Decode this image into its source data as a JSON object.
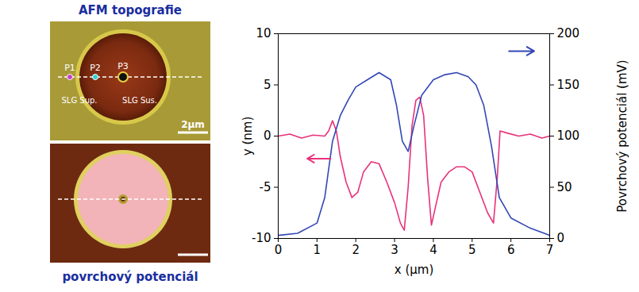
{
  "chart_data": {
    "type": "line",
    "x_label": "x (μm)",
    "y_label": "y (nm)",
    "y2_label": "Povrchový potenciál (mV)",
    "xlim": [
      0,
      7
    ],
    "xticks": [
      0,
      1,
      2,
      3,
      4,
      5,
      6,
      7
    ],
    "ylim": [
      -10,
      10
    ],
    "yticks": [
      -10,
      -5,
      0,
      5,
      10
    ],
    "y2lim": [
      0,
      200
    ],
    "y2ticks": [
      0,
      50,
      100,
      150,
      200
    ],
    "series": [
      {
        "color": "#e8327a",
        "axis": "y",
        "x": [
          0,
          0.3,
          0.6,
          0.9,
          1.2,
          1.3,
          1.4,
          1.5,
          1.6,
          1.75,
          1.9,
          2.05,
          2.2,
          2.4,
          2.6,
          2.8,
          3.0,
          3.15,
          3.25,
          3.35,
          3.45,
          3.55,
          3.65,
          3.75,
          3.85,
          3.95,
          4.05,
          4.2,
          4.4,
          4.6,
          4.8,
          5.0,
          5.2,
          5.4,
          5.55,
          5.65,
          5.72,
          5.9,
          6.2,
          6.5,
          6.8,
          7.0
        ],
        "values": [
          0,
          0.2,
          -0.2,
          0.1,
          0,
          0.5,
          1.5,
          0.5,
          -2,
          -4.5,
          -6,
          -5.5,
          -3.5,
          -2.5,
          -2.7,
          -4.5,
          -6.5,
          -8.5,
          -9.2,
          -5,
          1,
          3.5,
          3.8,
          2,
          -4,
          -8.7,
          -7,
          -4.5,
          -3.5,
          -3,
          -3,
          -3.5,
          -5.5,
          -7.5,
          -8.5,
          -4,
          0.5,
          0.3,
          0,
          0.2,
          -0.2,
          0
        ]
      },
      {
        "color": "#3347b5",
        "axis": "y2",
        "x": [
          0,
          0.5,
          1.0,
          1.2,
          1.4,
          1.6,
          1.8,
          2.0,
          2.3,
          2.6,
          2.9,
          3.05,
          3.2,
          3.35,
          3.5,
          3.7,
          4.0,
          4.3,
          4.6,
          4.9,
          5.1,
          5.3,
          5.5,
          5.7,
          6.0,
          6.5,
          7.0
        ],
        "values": [
          3,
          5,
          15,
          40,
          95,
          120,
          135,
          148,
          155,
          162,
          155,
          130,
          95,
          85,
          110,
          140,
          155,
          160,
          162,
          158,
          150,
          130,
          90,
          40,
          20,
          10,
          3
        ]
      }
    ]
  },
  "panels": [
    {
      "title": "AFM topografie",
      "labels": [
        "P1",
        "P2",
        "P3",
        "SLG Sup.",
        "SLG Sus."
      ],
      "scale_bar": "2μm"
    },
    {
      "title": "povrchový potenciál"
    }
  ]
}
